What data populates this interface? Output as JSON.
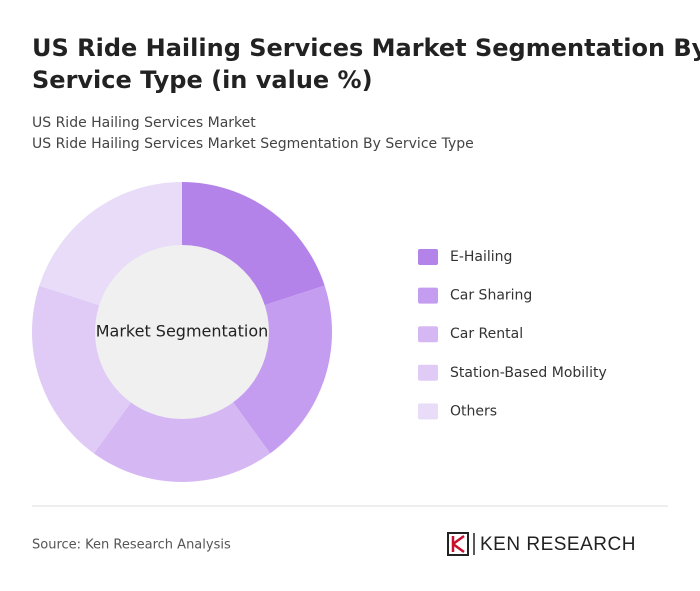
{
  "header": {
    "title_lines": [
      "US Ride Hailing Services Market Segmentation By",
      "Service Type (in value %)"
    ],
    "subtitles": [
      "US Ride Hailing Services Market",
      "US Ride Hailing Services Market Segmentation By Service Type"
    ]
  },
  "chart_data": {
    "type": "pie",
    "center_label": "Market Segmentation",
    "categories": [
      "E-Hailing",
      "Car Sharing",
      "Car Rental",
      "Station-Based Mobility",
      "Others"
    ],
    "values": [
      20,
      20,
      20,
      20,
      20
    ],
    "colors": [
      "#b383ea",
      "#c49df0",
      "#d5b8f3",
      "#e0cbf6",
      "#e9dcf8"
    ]
  },
  "footer": {
    "source": "Source: Ken Research Analysis",
    "logo": "KEN RESEARCH"
  }
}
